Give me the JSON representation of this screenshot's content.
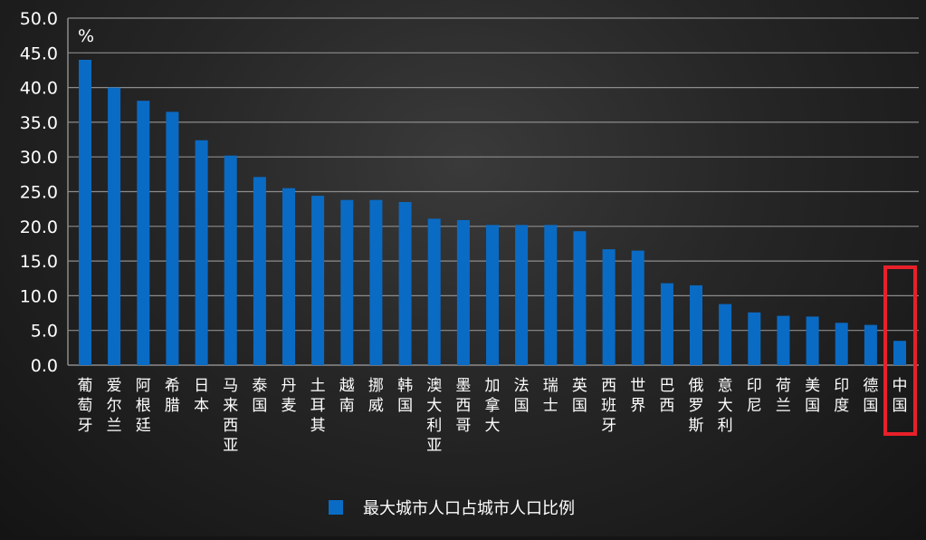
{
  "chart_data": {
    "type": "bar",
    "unit_label": "%",
    "categories": [
      "葡萄牙",
      "爱尔兰",
      "阿根廷",
      "希腊",
      "日本",
      "马来西亚",
      "泰国",
      "丹麦",
      "土耳其",
      "越南",
      "挪威",
      "韩国",
      "澳大利亚",
      "墨西哥",
      "加拿大",
      "法国",
      "瑞士",
      "英国",
      "西班牙",
      "世界",
      "巴西",
      "俄罗斯",
      "意大利",
      "印尼",
      "荷兰",
      "美国",
      "印度",
      "德国",
      "中国"
    ],
    "series": [
      {
        "name": "最大城市人口占城市人口比例",
        "values": [
          44.0,
          40.0,
          38.1,
          36.5,
          32.4,
          30.2,
          27.1,
          25.5,
          24.4,
          23.8,
          23.8,
          23.5,
          21.1,
          20.9,
          20.2,
          20.2,
          20.2,
          19.3,
          16.7,
          16.5,
          11.8,
          11.5,
          8.8,
          7.6,
          7.1,
          7.0,
          6.1,
          5.8,
          3.5
        ]
      }
    ],
    "ylim": [
      0,
      50
    ],
    "yticks": [
      "0.0",
      "5.0",
      "10.0",
      "15.0",
      "20.0",
      "25.0",
      "30.0",
      "35.0",
      "40.0",
      "45.0",
      "50.0"
    ],
    "grid": true,
    "legend_position": "bottom",
    "highlight_category": "中国"
  },
  "colors": {
    "bar": "#0a6bc4",
    "grid": "#8c8c8c",
    "text": "#ffffff",
    "highlight": "#e8202a"
  }
}
